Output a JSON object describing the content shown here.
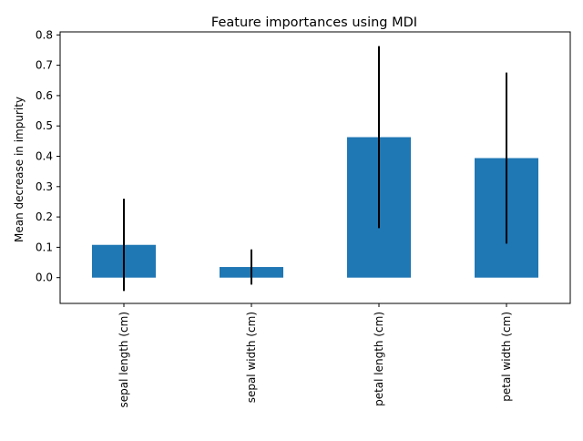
{
  "chart_data": {
    "type": "bar",
    "title": "Feature importances using MDI",
    "xlabel": "",
    "ylabel": "Mean decrease in impurity",
    "categories": [
      "sepal length (cm)",
      "sepal width (cm)",
      "petal length (cm)",
      "petal width (cm)"
    ],
    "values": [
      0.108,
      0.035,
      0.463,
      0.394
    ],
    "errors": [
      0.152,
      0.058,
      0.3,
      0.282
    ],
    "ylim": [
      -0.085,
      0.81
    ],
    "yticks": [
      0.0,
      0.1,
      0.2,
      0.3,
      0.4,
      0.5,
      0.6,
      0.7,
      0.8
    ],
    "ytick_labels": [
      "0.0",
      "0.1",
      "0.2",
      "0.3",
      "0.4",
      "0.5",
      "0.6",
      "0.7",
      "0.8"
    ],
    "grid": false,
    "bar_color": "#1f77b4",
    "error_color": "#000000"
  }
}
